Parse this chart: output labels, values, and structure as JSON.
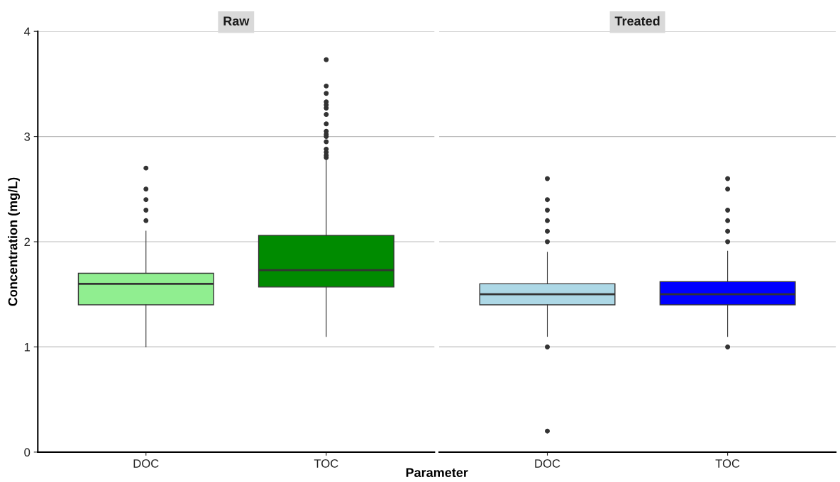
{
  "chart_data": [
    {
      "type": "box",
      "title": "Raw",
      "xlabel": "Parameter",
      "ylabel": "Concentration (mg/L)",
      "categories": [
        "DOC",
        "TOC"
      ],
      "colors": [
        "#90ee90",
        "#008b00"
      ],
      "ylim": [
        0,
        4
      ],
      "yticks": [
        0,
        1,
        2,
        3,
        4
      ],
      "grid": "y",
      "boxes": [
        {
          "low": 1.0,
          "q1": 1.4,
          "median": 1.6,
          "q3": 1.7,
          "high": 2.1,
          "outliers": [
            2.2,
            2.3,
            2.4,
            2.5,
            2.7
          ]
        },
        {
          "low": 1.1,
          "q1": 1.57,
          "median": 1.73,
          "q3": 2.06,
          "high": 2.78,
          "outliers": [
            2.8,
            2.82,
            2.85,
            2.88,
            2.95,
            3.0,
            3.02,
            3.05,
            3.12,
            3.21,
            3.27,
            3.3,
            3.33,
            3.41,
            3.48,
            3.73
          ]
        }
      ]
    },
    {
      "type": "box",
      "title": "Treated",
      "categories": [
        "DOC",
        "TOC"
      ],
      "colors": [
        "#add8e6",
        "#0000ff"
      ],
      "ylim": [
        0,
        4
      ],
      "yticks": [
        0,
        1,
        2,
        3,
        4
      ],
      "grid": "y",
      "tick_labels": "x",
      "boxes": [
        {
          "low": 1.1,
          "q1": 1.4,
          "median": 1.5,
          "q3": 1.6,
          "high": 1.9,
          "outliers": [
            0.2,
            1.0,
            2.0,
            2.1,
            2.2,
            2.3,
            2.4,
            2.6
          ]
        },
        {
          "low": 1.1,
          "q1": 1.4,
          "median": 1.5,
          "q3": 1.62,
          "high": 1.91,
          "outliers": [
            1.0,
            2.0,
            2.1,
            2.2,
            2.3,
            2.5,
            2.6
          ]
        }
      ]
    }
  ]
}
